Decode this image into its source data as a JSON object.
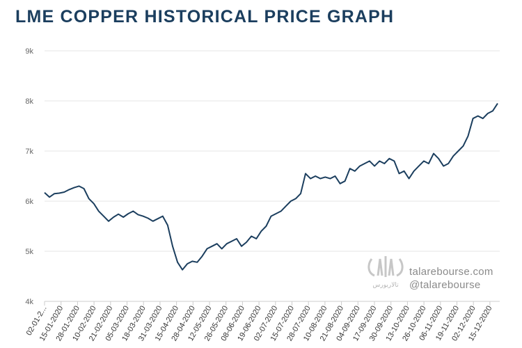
{
  "chart_data": {
    "type": "line",
    "title": "LME COPPER HISTORICAL PRICE GRAPH",
    "xlabel": "",
    "ylabel": "",
    "ylim": [
      4000,
      9000
    ],
    "yticks": [
      4000,
      5000,
      6000,
      7000,
      8000,
      9000
    ],
    "ytick_labels": [
      "4k",
      "5k",
      "6k",
      "7k",
      "8k",
      "9k"
    ],
    "x_tick_labels": [
      "02-01-2...",
      "15-01-2020",
      "28-01-2020",
      "10-02-2020",
      "21-02-2020",
      "05-03-2020",
      "18-03-2020",
      "31-03-2020",
      "15-04-2020",
      "28-04-2020",
      "12-05-2020",
      "26-05-2020",
      "08-06-2020",
      "19-06-2020",
      "02-07-2020",
      "15-07-2020",
      "28-07-2020",
      "10-08-2020",
      "21-08-2020",
      "04-09-2020",
      "17-09-2020",
      "30-09-2020",
      "13-10-2020",
      "26-10-2020",
      "06-11-2020",
      "19-11-2020",
      "02-12-2020",
      "15-12-2020"
    ],
    "grid": true,
    "legend": "none",
    "series": [
      {
        "name": "LME Copper",
        "values": [
          6170,
          6080,
          6150,
          6160,
          6180,
          6230,
          6270,
          6300,
          6250,
          6050,
          5950,
          5800,
          5700,
          5600,
          5680,
          5740,
          5680,
          5750,
          5800,
          5730,
          5700,
          5660,
          5600,
          5650,
          5700,
          5520,
          5100,
          4780,
          4630,
          4750,
          4800,
          4780,
          4900,
          5050,
          5100,
          5150,
          5050,
          5150,
          5200,
          5250,
          5100,
          5180,
          5300,
          5250,
          5400,
          5500,
          5700,
          5750,
          5800,
          5900,
          6000,
          6050,
          6150,
          6550,
          6450,
          6500,
          6450,
          6480,
          6450,
          6500,
          6350,
          6400,
          6650,
          6600,
          6700,
          6750,
          6800,
          6700,
          6800,
          6750,
          6850,
          6800,
          6550,
          6600,
          6450,
          6600,
          6700,
          6800,
          6750,
          6950,
          6850,
          6700,
          6750,
          6900,
          7000,
          7100,
          7300,
          7650,
          7700,
          7650,
          7750,
          7800,
          7950
        ]
      }
    ]
  },
  "watermark": {
    "url": "talarebourse.com",
    "handle": "@talarebourse",
    "logo_text": "تالاربورس"
  }
}
